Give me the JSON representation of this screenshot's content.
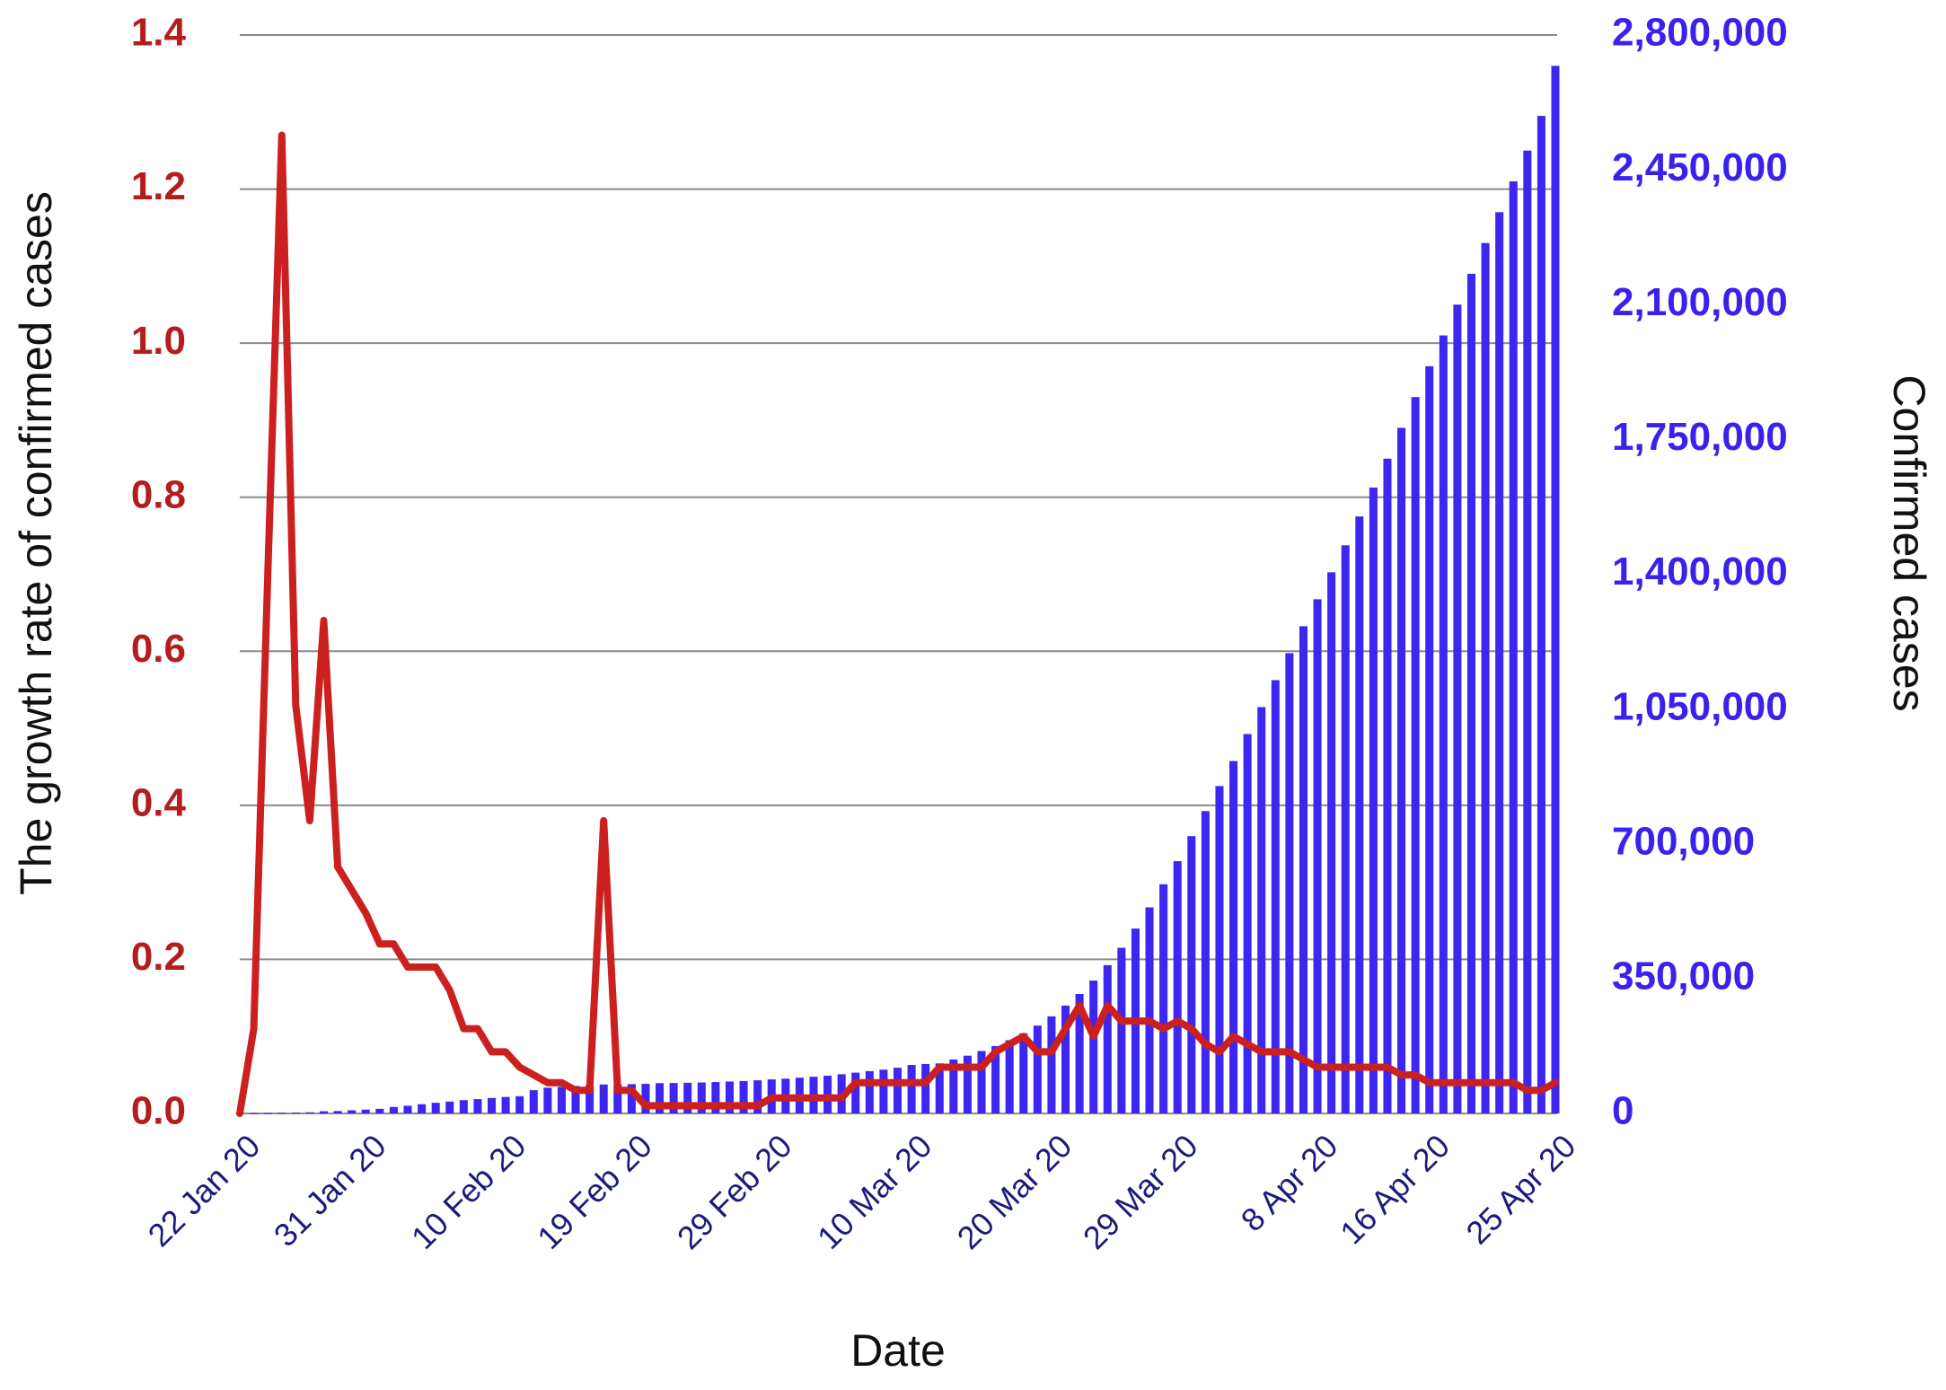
{
  "chart_data": {
    "type": "bar-line",
    "xlabel": "Date",
    "ylabel": "The growth rate of confirmed cases",
    "y2label": "Confirmed cases",
    "categories": [
      "22 Jan 20",
      null,
      null,
      null,
      null,
      null,
      null,
      null,
      null,
      "31 Jan 20",
      null,
      null,
      null,
      null,
      null,
      null,
      null,
      null,
      null,
      "10 Feb 20",
      null,
      null,
      null,
      null,
      null,
      null,
      null,
      null,
      "19 Feb 20",
      null,
      null,
      null,
      null,
      null,
      null,
      null,
      null,
      null,
      "29 Feb 20",
      null,
      null,
      null,
      null,
      null,
      null,
      null,
      null,
      null,
      "10 Mar 20",
      null,
      null,
      null,
      null,
      null,
      null,
      null,
      null,
      null,
      "20 Mar 20",
      null,
      null,
      null,
      null,
      null,
      null,
      null,
      null,
      "29 Mar 20",
      null,
      null,
      null,
      null,
      null,
      null,
      null,
      null,
      null,
      "8 Apr 20",
      null,
      null,
      null,
      null,
      null,
      null,
      null,
      "16 Apr 20",
      null,
      null,
      null,
      null,
      null,
      null,
      null,
      null,
      "25 Apr 20"
    ],
    "series": [
      {
        "name": "Growth rate",
        "type": "line",
        "color": "#cc1f1f",
        "values": [
          0,
          0.11,
          0.7,
          1.27,
          0.53,
          0.38,
          0.64,
          0.32,
          0.29,
          0.26,
          0.22,
          0.22,
          0.19,
          0.19,
          0.19,
          0.16,
          0.11,
          0.11,
          0.08,
          0.08,
          0.06,
          0.05,
          0.04,
          0.04,
          0.03,
          0.03,
          0.38,
          0.03,
          0.03,
          0.01,
          0.01,
          0.01,
          0.01,
          0.01,
          0.01,
          0.01,
          0.01,
          0.01,
          0.02,
          0.02,
          0.02,
          0.02,
          0.02,
          0.02,
          0.04,
          0.04,
          0.04,
          0.04,
          0.04,
          0.04,
          0.06,
          0.06,
          0.06,
          0.06,
          0.08,
          0.09,
          0.1,
          0.08,
          0.08,
          0.11,
          0.14,
          0.1,
          0.14,
          0.12,
          0.12,
          0.12,
          0.11,
          0.12,
          0.11,
          0.09,
          0.08,
          0.1,
          0.09,
          0.08,
          0.08,
          0.08,
          0.07,
          0.06,
          0.06,
          0.06,
          0.06,
          0.06,
          0.06,
          0.05,
          0.05,
          0.04,
          0.04,
          0.04,
          0.04,
          0.04,
          0.04,
          0.04,
          0.03,
          0.03,
          0.04
        ]
      },
      {
        "name": "Confirmed cases",
        "type": "bar",
        "axis": "y2",
        "color": "#3d26f0",
        "values": [
          555,
          654,
          941,
          1434,
          2118,
          2927,
          5578,
          6166,
          8234,
          9927,
          12038,
          16787,
          19887,
          23898,
          27643,
          30802,
          34395,
          37129,
          40150,
          42762,
          44802,
          60370,
          66887,
          69032,
          71226,
          73260,
          75138,
          75641,
          76199,
          76843,
          78599,
          78985,
          79570,
          80415,
          81397,
          82756,
          84124,
          86013,
          88371,
          90309,
          92844,
          95124,
          97886,
          101800,
          105836,
          109835,
          113582,
          118582,
          125865,
          128343,
          130000,
          140000,
          150000,
          162000,
          175000,
          190000,
          208000,
          228000,
          252000,
          280000,
          310000,
          345000,
          385000,
          430000,
          480000,
          535000,
          595000,
          655000,
          720000,
          785000,
          850000,
          915000,
          985000,
          1055000,
          1125000,
          1195000,
          1265000,
          1335000,
          1405000,
          1475000,
          1550000,
          1625000,
          1700000,
          1780000,
          1860000,
          1940000,
          2020000,
          2100000,
          2180000,
          2260000,
          2340000,
          2420000,
          2500000,
          2590000,
          2720000
        ]
      }
    ],
    "ylim": [
      0,
      1.4
    ],
    "yticks": [
      {
        "value": 0,
        "label": "0.0"
      },
      0.2,
      0.4,
      0.6,
      0.8,
      {
        "value": 1,
        "label": "1.0"
      },
      1.2,
      1.4
    ],
    "y2lim": [
      0,
      2800000
    ],
    "y2ticks": [
      0,
      {
        "value": 350000,
        "label": "350,000"
      },
      {
        "value": 700000,
        "label": "700,000"
      },
      {
        "value": 1050000,
        "label": "1,050,000"
      },
      {
        "value": 1400000,
        "label": "1,400,000"
      },
      {
        "value": 1750000,
        "label": "1,750,000"
      },
      {
        "value": 2100000,
        "label": "2,100,000"
      },
      {
        "value": 2450000,
        "label": "2,450,000"
      },
      {
        "value": 2800000,
        "label": "2,800,000"
      }
    ],
    "grid": true
  }
}
